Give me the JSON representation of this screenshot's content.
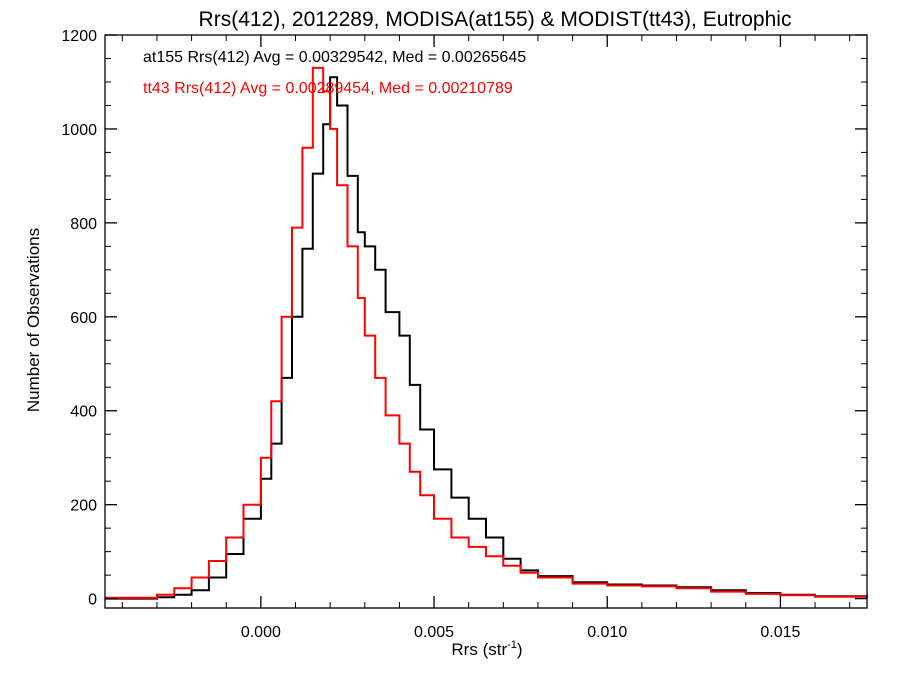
{
  "chart_data": {
    "type": "line",
    "style": "step-histogram",
    "title": "Rrs(412), 2012289, MODISA(at155) & MODIST(tt43), Eutrophic",
    "xlabel": "Rrs (str",
    "xlabel_superscript": "-1",
    "xlabel_suffix": ")",
    "ylabel": "Number of Observations",
    "xlim": [
      -0.0045,
      0.0175
    ],
    "ylim": [
      -20,
      1200
    ],
    "xticks": [
      0.0,
      0.005,
      0.01,
      0.015
    ],
    "xtick_labels": [
      "0.000",
      "0.005",
      "0.010",
      "0.015"
    ],
    "yticks": [
      0,
      200,
      400,
      600,
      800,
      1000,
      1200
    ],
    "ytick_labels": [
      "0",
      "200",
      "400",
      "600",
      "800",
      "1000",
      "1200"
    ],
    "grid": false,
    "annotations": [
      {
        "text": "at155 Rrs(412) Avg = 0.00329542, Med = 0.00265645",
        "color": "#000000"
      },
      {
        "text": "tt43 Rrs(412) Avg = 0.00289454, Med = 0.00210789",
        "color": "#ff0000"
      }
    ],
    "series": [
      {
        "color": "#000000",
        "x": [
          -0.0045,
          -0.003,
          -0.0025,
          -0.002,
          -0.0015,
          -0.001,
          -0.0005,
          0.0,
          0.0003,
          0.0006,
          0.0009,
          0.0012,
          0.0015,
          0.0018,
          0.002,
          0.0022,
          0.0025,
          0.0028,
          0.003,
          0.0033,
          0.0036,
          0.004,
          0.0043,
          0.0046,
          0.005,
          0.0055,
          0.006,
          0.0065,
          0.007,
          0.0075,
          0.008,
          0.009,
          0.01,
          0.011,
          0.012,
          0.013,
          0.014,
          0.015,
          0.016,
          0.0175
        ],
        "values": [
          0,
          3,
          8,
          18,
          45,
          95,
          170,
          255,
          330,
          470,
          600,
          745,
          905,
          1010,
          1110,
          1050,
          900,
          780,
          750,
          700,
          610,
          560,
          455,
          360,
          275,
          215,
          170,
          130,
          85,
          60,
          48,
          35,
          30,
          28,
          24,
          18,
          12,
          8,
          5,
          2
        ]
      },
      {
        "color": "#ff0000",
        "x": [
          -0.0045,
          -0.003,
          -0.0025,
          -0.002,
          -0.0015,
          -0.001,
          -0.0005,
          0.0,
          0.0003,
          0.0006,
          0.0009,
          0.0012,
          0.0015,
          0.0018,
          0.002,
          0.0022,
          0.0025,
          0.0028,
          0.003,
          0.0033,
          0.0036,
          0.004,
          0.0043,
          0.0046,
          0.005,
          0.0055,
          0.006,
          0.0065,
          0.007,
          0.0075,
          0.008,
          0.009,
          0.01,
          0.011,
          0.012,
          0.013,
          0.014,
          0.015,
          0.016,
          0.0175
        ],
        "values": [
          2,
          8,
          22,
          45,
          80,
          130,
          200,
          300,
          420,
          600,
          790,
          960,
          1130,
          1080,
          1000,
          880,
          750,
          640,
          560,
          470,
          390,
          330,
          270,
          220,
          170,
          130,
          110,
          90,
          70,
          55,
          45,
          32,
          28,
          26,
          22,
          15,
          10,
          7,
          4,
          2
        ]
      }
    ]
  }
}
